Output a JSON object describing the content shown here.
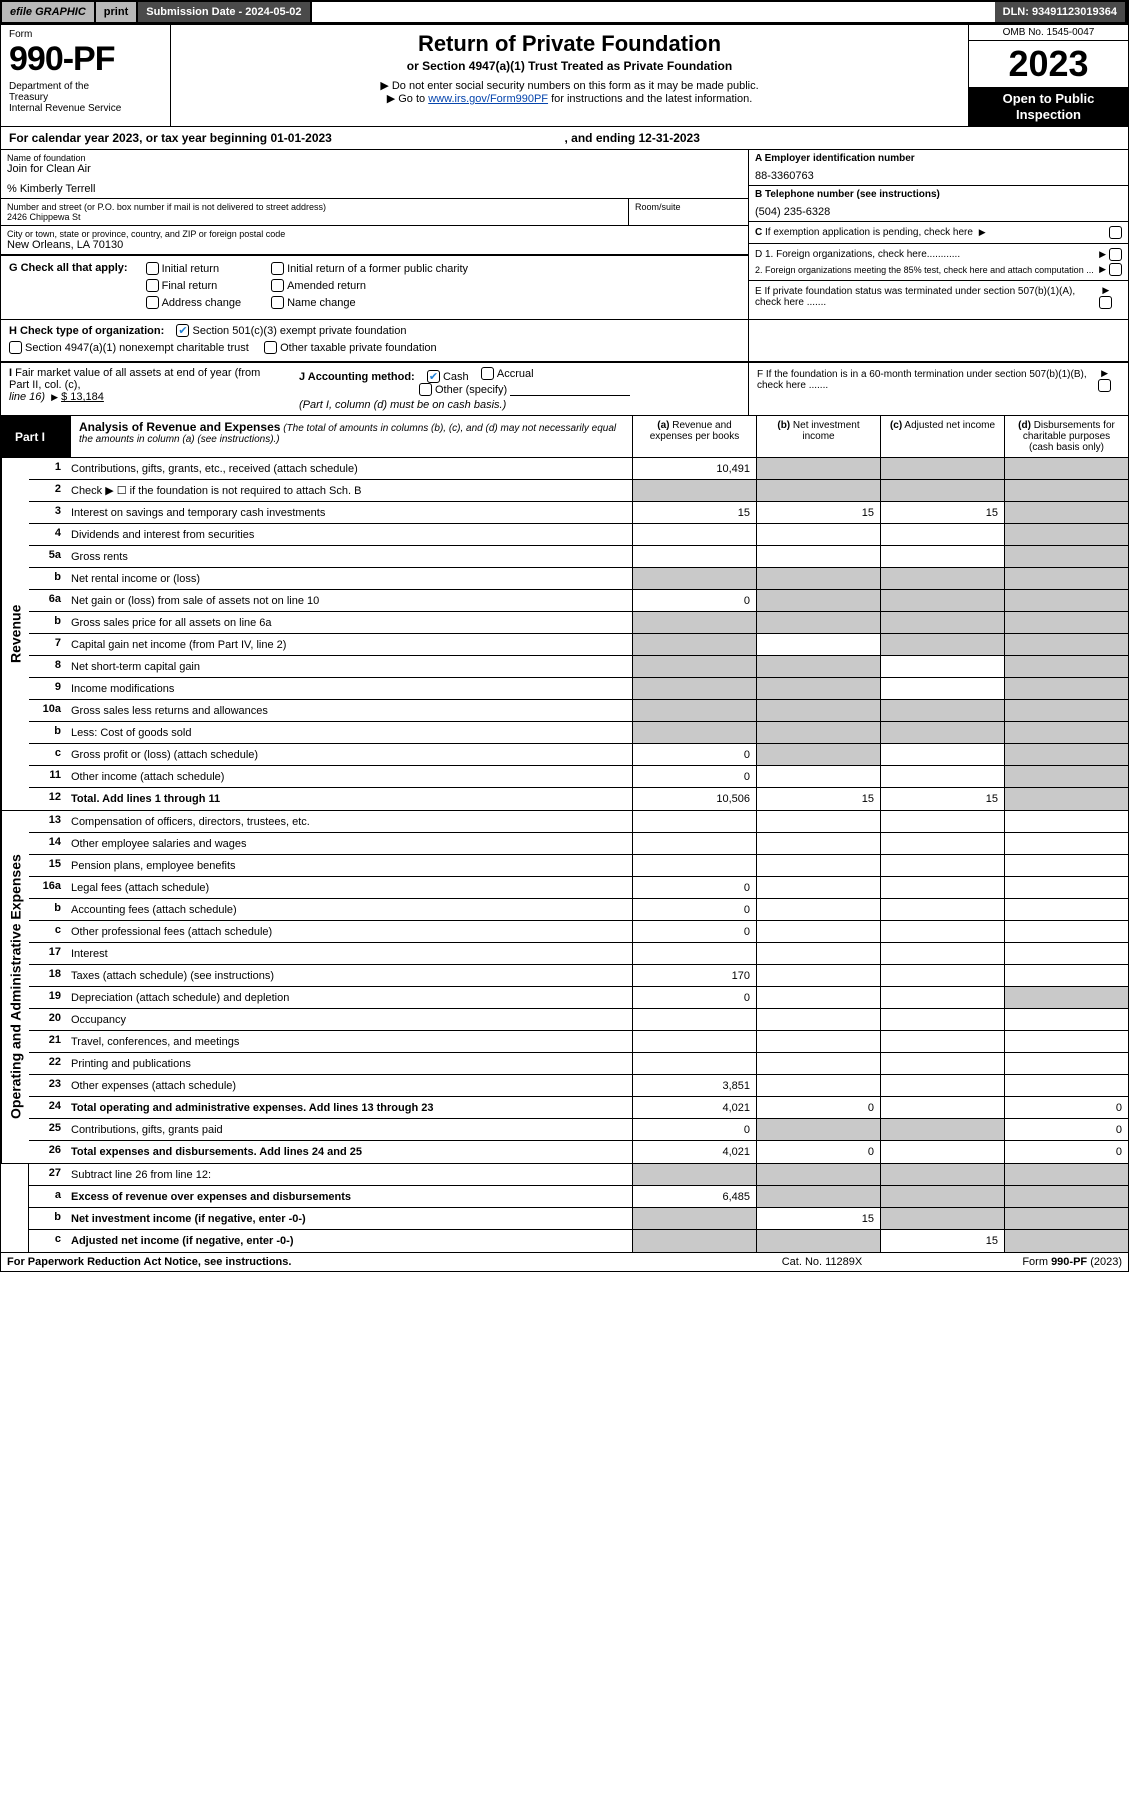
{
  "colors": {
    "accent_blue": "#1e7fd6",
    "link": "#0645ad",
    "grey_cell": "#c9c9c9",
    "dark_bar": "#4a4a4a",
    "light_bar": "#b8b8b8"
  },
  "topbar": {
    "efile": "efile GRAPHIC",
    "print": "print",
    "submission": "Submission Date - 2024-05-02",
    "dln": "DLN: 93491123019364"
  },
  "header": {
    "form_label": "Form",
    "form_num": "990-PF",
    "dept": "Department of the Treasury\nInternal Revenue Service",
    "title": "Return of Private Foundation",
    "subtitle": "or Section 4947(a)(1) Trust Treated as Private Foundation",
    "instr1": "▶ Do not enter social security numbers on this form as it may be made public.",
    "instr2_pre": "▶ Go to ",
    "instr2_link": "www.irs.gov/Form990PF",
    "instr2_post": " for instructions and the latest information.",
    "omb": "OMB No. 1545-0047",
    "year": "2023",
    "open_pub": "Open to Public Inspection"
  },
  "cal_year": {
    "begin_lbl": "For calendar year 2023, or tax year beginning ",
    "begin_val": "01-01-2023",
    "end_lbl": ", and ending ",
    "end_val": "12-31-2023"
  },
  "info": {
    "name_lbl": "Name of foundation",
    "name": "Join for Clean Air",
    "care_of": "% Kimberly Terrell",
    "addr_lbl": "Number and street (or P.O. box number if mail is not delivered to street address)",
    "addr": "2426 Chippewa St",
    "room_lbl": "Room/suite",
    "city_lbl": "City or town, state or province, country, and ZIP or foreign postal code",
    "city": "New Orleans, LA  70130",
    "A_lbl": "A Employer identification number",
    "A_val": "88-3360763",
    "B_lbl": "B Telephone number (see instructions)",
    "B_val": "(504) 235-6328",
    "C_lbl": "C If exemption application is pending, check here",
    "D1_lbl": "D 1. Foreign organizations, check here............",
    "D2_lbl": "2. Foreign organizations meeting the 85% test, check here and attach computation ...",
    "E_lbl": "E  If private foundation status was terminated under section 507(b)(1)(A), check here .......",
    "F_lbl": "F  If the foundation is in a 60-month termination under section 507(b)(1)(B), check here ......."
  },
  "G": {
    "label": "G Check all that apply:",
    "opts": [
      "Initial return",
      "Initial return of a former public charity",
      "Final return",
      "Amended return",
      "Address change",
      "Name change"
    ]
  },
  "H": {
    "label": "H Check type of organization:",
    "opt1": "Section 501(c)(3) exempt private foundation",
    "opt2": "Section 4947(a)(1) nonexempt charitable trust",
    "opt3": "Other taxable private foundation"
  },
  "I": {
    "label": "I Fair market value of all assets at end of year (from Part II, col. (c), line 16)",
    "val": "$ 13,184"
  },
  "J": {
    "label": "J Accounting method:",
    "cash": "Cash",
    "accrual": "Accrual",
    "other": "Other (specify)",
    "note": "(Part I, column (d) must be on cash basis.)"
  },
  "part1": {
    "label": "Part I",
    "title": "Analysis of Revenue and Expenses",
    "note": "(The total of amounts in columns (b), (c), and (d) may not necessarily equal the amounts in column (a) (see instructions).)",
    "cols": {
      "a": "(a)  Revenue and expenses per books",
      "b": "(b)  Net investment income",
      "c": "(c)  Adjusted net income",
      "d": "(d)  Disbursements for charitable purposes (cash basis only)"
    }
  },
  "vlabels": {
    "rev": "Revenue",
    "exp": "Operating and Administrative Expenses"
  },
  "rows": [
    {
      "n": "1",
      "desc": "Contributions, gifts, grants, etc., received (attach schedule)",
      "a": "10,491",
      "b": "",
      "c": "",
      "d": "",
      "grey": [
        "b",
        "c",
        "d"
      ]
    },
    {
      "n": "2",
      "desc": "Check ▶ ☐ if the foundation is not required to attach Sch. B",
      "a": "",
      "b": "",
      "c": "",
      "d": "",
      "grey": [
        "a",
        "b",
        "c",
        "d"
      ]
    },
    {
      "n": "3",
      "desc": "Interest on savings and temporary cash investments",
      "a": "15",
      "b": "15",
      "c": "15",
      "d": "",
      "grey": [
        "d"
      ]
    },
    {
      "n": "4",
      "desc": "Dividends and interest from securities",
      "a": "",
      "b": "",
      "c": "",
      "d": "",
      "grey": [
        "d"
      ]
    },
    {
      "n": "5a",
      "desc": "Gross rents",
      "a": "",
      "b": "",
      "c": "",
      "d": "",
      "grey": [
        "d"
      ]
    },
    {
      "n": "b",
      "desc": "Net rental income or (loss)",
      "a": "",
      "b": "",
      "c": "",
      "d": "",
      "grey": [
        "a",
        "b",
        "c",
        "d"
      ]
    },
    {
      "n": "6a",
      "desc": "Net gain or (loss) from sale of assets not on line 10",
      "a": "0",
      "b": "",
      "c": "",
      "d": "",
      "grey": [
        "b",
        "c",
        "d"
      ]
    },
    {
      "n": "b",
      "desc": "Gross sales price for all assets on line 6a",
      "a": "",
      "b": "",
      "c": "",
      "d": "",
      "grey": [
        "a",
        "b",
        "c",
        "d"
      ]
    },
    {
      "n": "7",
      "desc": "Capital gain net income (from Part IV, line 2)",
      "a": "",
      "b": "",
      "c": "",
      "d": "",
      "grey": [
        "a",
        "c",
        "d"
      ]
    },
    {
      "n": "8",
      "desc": "Net short-term capital gain",
      "a": "",
      "b": "",
      "c": "",
      "d": "",
      "grey": [
        "a",
        "b",
        "d"
      ]
    },
    {
      "n": "9",
      "desc": "Income modifications",
      "a": "",
      "b": "",
      "c": "",
      "d": "",
      "grey": [
        "a",
        "b",
        "d"
      ]
    },
    {
      "n": "10a",
      "desc": "Gross sales less returns and allowances",
      "a": "",
      "b": "",
      "c": "",
      "d": "",
      "grey": [
        "a",
        "b",
        "c",
        "d"
      ]
    },
    {
      "n": "b",
      "desc": "Less: Cost of goods sold",
      "a": "",
      "b": "",
      "c": "",
      "d": "",
      "grey": [
        "a",
        "b",
        "c",
        "d"
      ]
    },
    {
      "n": "c",
      "desc": "Gross profit or (loss) (attach schedule)",
      "a": "0",
      "b": "",
      "c": "",
      "d": "",
      "grey": [
        "b",
        "d"
      ]
    },
    {
      "n": "11",
      "desc": "Other income (attach schedule)",
      "a": "0",
      "b": "",
      "c": "",
      "d": "",
      "grey": [
        "d"
      ]
    },
    {
      "n": "12",
      "desc": "Total. Add lines 1 through 11",
      "bold": true,
      "a": "10,506",
      "b": "15",
      "c": "15",
      "d": "",
      "grey": [
        "d"
      ]
    }
  ],
  "exp_rows": [
    {
      "n": "13",
      "desc": "Compensation of officers, directors, trustees, etc.",
      "a": "",
      "b": "",
      "c": "",
      "d": ""
    },
    {
      "n": "14",
      "desc": "Other employee salaries and wages",
      "a": "",
      "b": "",
      "c": "",
      "d": ""
    },
    {
      "n": "15",
      "desc": "Pension plans, employee benefits",
      "a": "",
      "b": "",
      "c": "",
      "d": ""
    },
    {
      "n": "16a",
      "desc": "Legal fees (attach schedule)",
      "a": "0",
      "b": "",
      "c": "",
      "d": ""
    },
    {
      "n": "b",
      "desc": "Accounting fees (attach schedule)",
      "a": "0",
      "b": "",
      "c": "",
      "d": ""
    },
    {
      "n": "c",
      "desc": "Other professional fees (attach schedule)",
      "a": "0",
      "b": "",
      "c": "",
      "d": ""
    },
    {
      "n": "17",
      "desc": "Interest",
      "a": "",
      "b": "",
      "c": "",
      "d": ""
    },
    {
      "n": "18",
      "desc": "Taxes (attach schedule) (see instructions)",
      "a": "170",
      "b": "",
      "c": "",
      "d": ""
    },
    {
      "n": "19",
      "desc": "Depreciation (attach schedule) and depletion",
      "a": "0",
      "b": "",
      "c": "",
      "d": "",
      "grey": [
        "d"
      ]
    },
    {
      "n": "20",
      "desc": "Occupancy",
      "a": "",
      "b": "",
      "c": "",
      "d": ""
    },
    {
      "n": "21",
      "desc": "Travel, conferences, and meetings",
      "a": "",
      "b": "",
      "c": "",
      "d": ""
    },
    {
      "n": "22",
      "desc": "Printing and publications",
      "a": "",
      "b": "",
      "c": "",
      "d": ""
    },
    {
      "n": "23",
      "desc": "Other expenses (attach schedule)",
      "a": "3,851",
      "b": "",
      "c": "",
      "d": ""
    },
    {
      "n": "24",
      "desc": "Total operating and administrative expenses. Add lines 13 through 23",
      "bold": true,
      "a": "4,021",
      "b": "0",
      "c": "",
      "d": "0"
    },
    {
      "n": "25",
      "desc": "Contributions, gifts, grants paid",
      "a": "0",
      "b": "",
      "c": "",
      "d": "0",
      "grey": [
        "b",
        "c"
      ]
    },
    {
      "n": "26",
      "desc": "Total expenses and disbursements. Add lines 24 and 25",
      "bold": true,
      "a": "4,021",
      "b": "0",
      "c": "",
      "d": "0"
    }
  ],
  "line27": [
    {
      "n": "27",
      "desc": "Subtract line 26 from line 12:",
      "a": "",
      "b": "",
      "c": "",
      "d": "",
      "grey": [
        "a",
        "b",
        "c",
        "d"
      ]
    },
    {
      "n": "a",
      "desc": "Excess of revenue over expenses and disbursements",
      "bold": true,
      "a": "6,485",
      "b": "",
      "c": "",
      "d": "",
      "grey": [
        "b",
        "c",
        "d"
      ]
    },
    {
      "n": "b",
      "desc": "Net investment income (if negative, enter -0-)",
      "bold": true,
      "a": "",
      "b": "15",
      "c": "",
      "d": "",
      "grey": [
        "a",
        "c",
        "d"
      ]
    },
    {
      "n": "c",
      "desc": "Adjusted net income (if negative, enter -0-)",
      "bold": true,
      "a": "",
      "b": "",
      "c": "15",
      "d": "",
      "grey": [
        "a",
        "b",
        "d"
      ]
    }
  ],
  "footer": {
    "left": "For Paperwork Reduction Act Notice, see instructions.",
    "center": "Cat. No. 11289X",
    "right": "Form 990-PF (2023)"
  }
}
